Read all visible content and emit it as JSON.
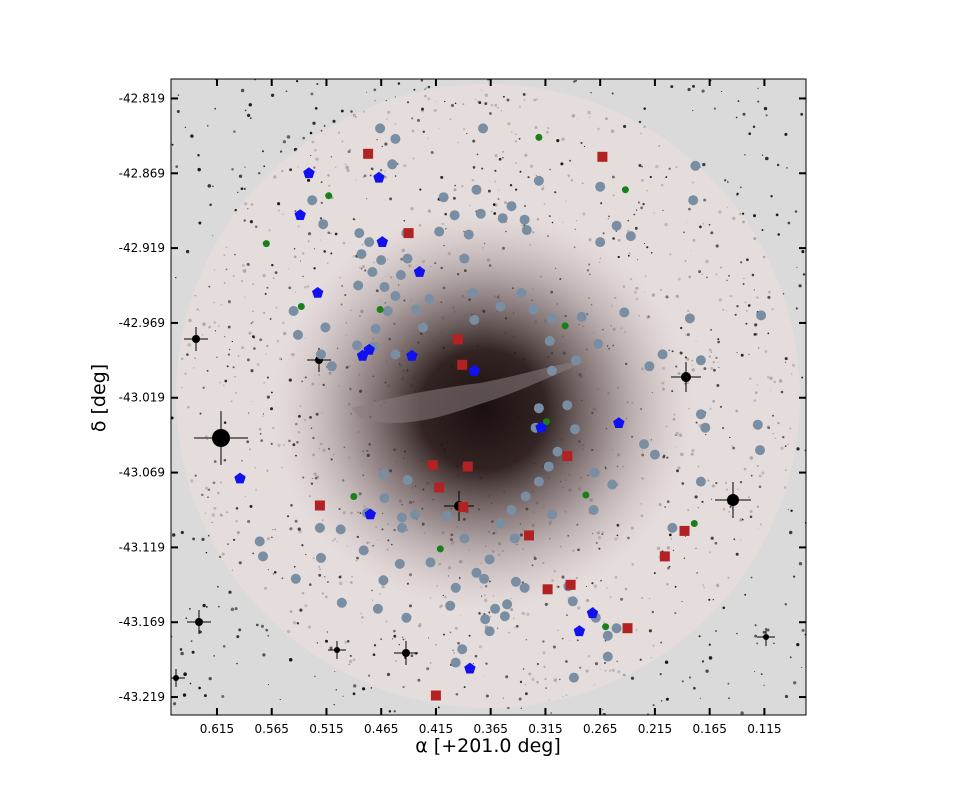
{
  "chart_data": {
    "type": "scatter",
    "title": "",
    "xlabel": "α [+201.0 deg]",
    "ylabel": "δ [deg]",
    "xlim": [
      0.657,
      0.077
    ],
    "ylim": [
      -43.231,
      -42.806
    ],
    "x_inverted": true,
    "grid": false,
    "legend": "none",
    "background": "grayscale sky image with galaxy at center and pink circular field overlay",
    "x_ticks": [
      0.615,
      0.565,
      0.515,
      0.465,
      0.415,
      0.365,
      0.315,
      0.265,
      0.215,
      0.165,
      0.115
    ],
    "x_tick_labels": [
      "0.615",
      "0.565",
      "0.515",
      "0.465",
      "0.415",
      "0.365",
      "0.315",
      "0.265",
      "0.215",
      "0.165",
      "0.115"
    ],
    "y_ticks": [
      -42.819,
      -42.869,
      -42.919,
      -42.969,
      -43.019,
      -43.069,
      -43.119,
      -43.169,
      -43.219
    ],
    "y_tick_labels": [
      "-42.819",
      "-42.869",
      "-42.919",
      "-42.969",
      "-43.019",
      "-43.069",
      "-43.119",
      "-43.169",
      "-43.219"
    ],
    "series": [
      {
        "marker": "circle",
        "color": "#7a8ea3",
        "size": "large",
        "points": [
          [
            0.466,
            -42.839
          ],
          [
            0.372,
            -42.839
          ],
          [
            0.452,
            -42.846
          ],
          [
            0.455,
            -42.863
          ],
          [
            0.321,
            -42.874
          ],
          [
            0.378,
            -42.88
          ],
          [
            0.265,
            -42.878
          ],
          [
            0.178,
            -42.864
          ],
          [
            0.18,
            -42.887
          ],
          [
            0.528,
            -42.887
          ],
          [
            0.408,
            -42.885
          ],
          [
            0.346,
            -42.891
          ],
          [
            0.374,
            -42.896
          ],
          [
            0.354,
            -42.899
          ],
          [
            0.398,
            -42.897
          ],
          [
            0.334,
            -42.9
          ],
          [
            0.25,
            -42.904
          ],
          [
            0.237,
            -42.911
          ],
          [
            0.265,
            -42.915
          ],
          [
            0.332,
            -42.907
          ],
          [
            0.518,
            -42.903
          ],
          [
            0.385,
            -42.91
          ],
          [
            0.412,
            -42.908
          ],
          [
            0.485,
            -42.909
          ],
          [
            0.442,
            -42.909
          ],
          [
            0.476,
            -42.915
          ],
          [
            0.483,
            -42.923
          ],
          [
            0.441,
            -42.926
          ],
          [
            0.389,
            -42.926
          ],
          [
            0.465,
            -42.927
          ],
          [
            0.473,
            -42.935
          ],
          [
            0.447,
            -42.937
          ],
          [
            0.462,
            -42.945
          ],
          [
            0.486,
            -42.944
          ],
          [
            0.452,
            -42.951
          ],
          [
            0.459,
            -42.961
          ],
          [
            0.421,
            -42.953
          ],
          [
            0.433,
            -42.96
          ],
          [
            0.381,
            -42.949
          ],
          [
            0.356,
            -42.958
          ],
          [
            0.337,
            -42.949
          ],
          [
            0.326,
            -42.96
          ],
          [
            0.309,
            -42.966
          ],
          [
            0.282,
            -42.965
          ],
          [
            0.243,
            -42.962
          ],
          [
            0.427,
            -42.972
          ],
          [
            0.38,
            -42.967
          ],
          [
            0.472,
            -42.985
          ],
          [
            0.487,
            -42.984
          ],
          [
            0.516,
            -42.972
          ],
          [
            0.541,
            -42.977
          ],
          [
            0.545,
            -42.961
          ],
          [
            0.52,
            -42.99
          ],
          [
            0.51,
            -42.998
          ],
          [
            0.47,
            -42.973
          ],
          [
            0.452,
            -42.99
          ],
          [
            0.183,
            -42.966
          ],
          [
            0.118,
            -42.964
          ],
          [
            0.173,
            -42.994
          ],
          [
            0.287,
            -42.994
          ],
          [
            0.267,
            -42.983
          ],
          [
            0.311,
            -42.981
          ],
          [
            0.309,
            -43.001
          ],
          [
            0.22,
            -42.998
          ],
          [
            0.208,
            -42.99
          ],
          [
            0.295,
            -43.024
          ],
          [
            0.321,
            -43.026
          ],
          [
            0.288,
            -43.04
          ],
          [
            0.324,
            -43.039
          ],
          [
            0.304,
            -43.055
          ],
          [
            0.312,
            -43.065
          ],
          [
            0.321,
            -43.075
          ],
          [
            0.333,
            -43.085
          ],
          [
            0.309,
            -43.097
          ],
          [
            0.27,
            -43.069
          ],
          [
            0.254,
            -43.077
          ],
          [
            0.271,
            -43.094
          ],
          [
            0.225,
            -43.05
          ],
          [
            0.215,
            -43.057
          ],
          [
            0.173,
            -43.075
          ],
          [
            0.169,
            -43.039
          ],
          [
            0.173,
            -43.03
          ],
          [
            0.121,
            -43.037
          ],
          [
            0.119,
            -43.054
          ],
          [
            0.199,
            -43.106
          ],
          [
            0.463,
            -43.07
          ],
          [
            0.441,
            -43.074
          ],
          [
            0.434,
            -43.097
          ],
          [
            0.405,
            -43.098
          ],
          [
            0.386,
            -43.065
          ],
          [
            0.346,
            -43.094
          ],
          [
            0.356,
            -43.103
          ],
          [
            0.343,
            -43.113
          ],
          [
            0.389,
            -43.113
          ],
          [
            0.366,
            -43.127
          ],
          [
            0.462,
            -43.086
          ],
          [
            0.478,
            -43.096
          ],
          [
            0.446,
            -43.106
          ],
          [
            0.448,
            -43.13
          ],
          [
            0.42,
            -43.129
          ],
          [
            0.378,
            -43.136
          ],
          [
            0.397,
            -43.146
          ],
          [
            0.371,
            -43.14
          ],
          [
            0.342,
            -43.142
          ],
          [
            0.334,
            -43.146
          ],
          [
            0.35,
            -43.157
          ],
          [
            0.37,
            -43.167
          ],
          [
            0.366,
            -43.175
          ],
          [
            0.294,
            -43.145
          ],
          [
            0.29,
            -43.155
          ],
          [
            0.269,
            -43.166
          ],
          [
            0.258,
            -43.178
          ],
          [
            0.25,
            -43.173
          ],
          [
            0.258,
            -43.192
          ],
          [
            0.289,
            -43.206
          ],
          [
            0.442,
            -43.166
          ],
          [
            0.481,
            -43.121
          ],
          [
            0.463,
            -43.141
          ],
          [
            0.52,
            -43.126
          ],
          [
            0.543,
            -43.14
          ],
          [
            0.576,
            -43.115
          ],
          [
            0.573,
            -43.125
          ],
          [
            0.501,
            -43.156
          ],
          [
            0.468,
            -43.16
          ],
          [
            0.361,
            -43.16
          ],
          [
            0.352,
            -43.165
          ],
          [
            0.402,
            -43.158
          ],
          [
            0.391,
            -43.187
          ],
          [
            0.397,
            -43.196
          ],
          [
            0.446,
            -43.099
          ],
          [
            0.521,
            -43.106
          ],
          [
            0.502,
            -43.107
          ]
        ]
      },
      {
        "marker": "square",
        "color": "#b22222",
        "size": "large",
        "points": [
          [
            0.477,
            -42.856
          ],
          [
            0.263,
            -42.858
          ],
          [
            0.44,
            -42.909
          ],
          [
            0.395,
            -42.98
          ],
          [
            0.391,
            -42.997
          ],
          [
            0.386,
            -43.065
          ],
          [
            0.418,
            -43.064
          ],
          [
            0.412,
            -43.079
          ],
          [
            0.39,
            -43.092
          ],
          [
            0.33,
            -43.111
          ],
          [
            0.295,
            -43.058
          ],
          [
            0.521,
            -43.091
          ],
          [
            0.313,
            -43.147
          ],
          [
            0.292,
            -43.144
          ],
          [
            0.24,
            -43.173
          ],
          [
            0.206,
            -43.125
          ],
          [
            0.188,
            -43.108
          ],
          [
            0.415,
            -43.218
          ]
        ]
      },
      {
        "marker": "circle",
        "color": "#1a7f1a",
        "size": "small",
        "points": [
          [
            0.321,
            -42.845
          ],
          [
            0.513,
            -42.884
          ],
          [
            0.242,
            -42.88
          ],
          [
            0.57,
            -42.916
          ],
          [
            0.538,
            -42.958
          ],
          [
            0.466,
            -42.96
          ],
          [
            0.297,
            -42.971
          ],
          [
            0.314,
            -43.035
          ],
          [
            0.278,
            -43.084
          ],
          [
            0.49,
            -43.085
          ],
          [
            0.411,
            -43.12
          ],
          [
            0.26,
            -43.172
          ],
          [
            0.179,
            -43.103
          ]
        ]
      },
      {
        "marker": "pentagon",
        "color": "#1010f0",
        "size": "large",
        "points": [
          [
            0.531,
            -42.869
          ],
          [
            0.467,
            -42.872
          ],
          [
            0.539,
            -42.897
          ],
          [
            0.464,
            -42.915
          ],
          [
            0.43,
            -42.935
          ],
          [
            0.523,
            -42.949
          ],
          [
            0.482,
            -42.991
          ],
          [
            0.476,
            -42.987
          ],
          [
            0.437,
            -42.991
          ],
          [
            0.38,
            -43.001
          ],
          [
            0.319,
            -43.039
          ],
          [
            0.248,
            -43.036
          ],
          [
            0.594,
            -43.073
          ],
          [
            0.475,
            -43.097
          ],
          [
            0.272,
            -43.163
          ],
          [
            0.284,
            -43.175
          ],
          [
            0.384,
            -43.2
          ]
        ]
      }
    ]
  }
}
